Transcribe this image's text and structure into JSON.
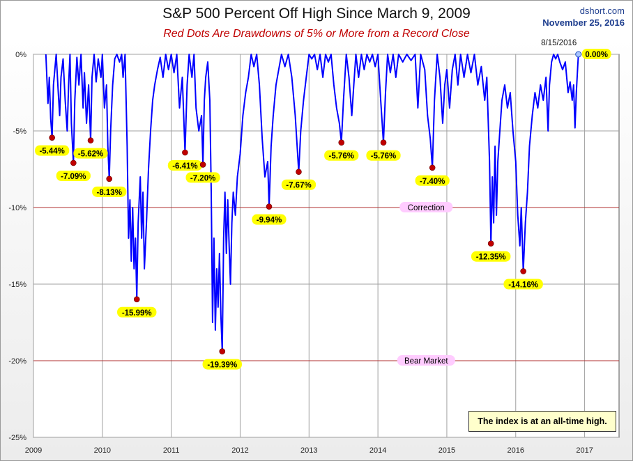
{
  "title": "S&P 500 Percent Off High Since March 9, 2009",
  "subtitle": "Red Dots Are Drawdowns of 5% or More from a Record Close",
  "source": "dshort.com",
  "date": "November 25, 2016",
  "note": "The index is at an all-time high.",
  "colors": {
    "series": "#0000ff",
    "drawdown_dot": "#c00000",
    "label_bg": "#ffff00",
    "threshold_line": "#b03030",
    "threshold_label_bg": "#ffccff",
    "current_dot": "#a8c4ff"
  },
  "chart_data": {
    "type": "line",
    "title": "S&P 500 Percent Off High Since March 9, 2009",
    "subtitle": "Red Dots Are Drawdowns of 5% or More from a Record Close",
    "xlim": [
      2009,
      2017.5
    ],
    "ylim": [
      -25,
      0
    ],
    "x_ticks": [
      "2009",
      "2010",
      "2011",
      "2012",
      "2013",
      "2014",
      "2015",
      "2016",
      "2017"
    ],
    "y_ticks": [
      "0%",
      "-5%",
      "-10%",
      "-15%",
      "-20%",
      "-25%"
    ],
    "grid": true,
    "series": [
      {
        "points": [
          [
            2009.18,
            0
          ],
          [
            2009.21,
            -3.2
          ],
          [
            2009.23,
            -1.5
          ],
          [
            2009.25,
            -4.2
          ],
          [
            2009.27,
            -5.44
          ],
          [
            2009.29,
            -2.0
          ],
          [
            2009.33,
            0
          ],
          [
            2009.36,
            -2.5
          ],
          [
            2009.38,
            -4.0
          ],
          [
            2009.4,
            -1.5
          ],
          [
            2009.43,
            -0.3
          ],
          [
            2009.46,
            -3.0
          ],
          [
            2009.49,
            -5.0
          ],
          [
            2009.51,
            -2.0
          ],
          [
            2009.53,
            0
          ],
          [
            2009.55,
            -4.5
          ],
          [
            2009.58,
            -7.09
          ],
          [
            2009.6,
            -3.0
          ],
          [
            2009.63,
            -0.2
          ],
          [
            2009.66,
            -2.0
          ],
          [
            2009.69,
            0
          ],
          [
            2009.72,
            -3.5
          ],
          [
            2009.74,
            -1.2
          ],
          [
            2009.77,
            -4.5
          ],
          [
            2009.8,
            -2.0
          ],
          [
            2009.83,
            -5.62
          ],
          [
            2009.85,
            -1.5
          ],
          [
            2009.88,
            0
          ],
          [
            2009.91,
            -1.8
          ],
          [
            2009.94,
            -0.3
          ],
          [
            2009.98,
            -1.5
          ],
          [
            2010.0,
            0
          ],
          [
            2010.03,
            -3.5
          ],
          [
            2010.06,
            -2.0
          ],
          [
            2010.08,
            -6.0
          ],
          [
            2010.1,
            -8.13
          ],
          [
            2010.12,
            -5.0
          ],
          [
            2010.15,
            -2.0
          ],
          [
            2010.18,
            -0.3
          ],
          [
            2010.21,
            0
          ],
          [
            2010.25,
            -0.5
          ],
          [
            2010.28,
            0
          ],
          [
            2010.3,
            -1.5
          ],
          [
            2010.33,
            0
          ],
          [
            2010.36,
            -6.0
          ],
          [
            2010.38,
            -12.0
          ],
          [
            2010.4,
            -9.5
          ],
          [
            2010.42,
            -13.5
          ],
          [
            2010.44,
            -10.0
          ],
          [
            2010.46,
            -14.0
          ],
          [
            2010.48,
            -12.0
          ],
          [
            2010.5,
            -15.99
          ],
          [
            2010.52,
            -11.0
          ],
          [
            2010.55,
            -8.0
          ],
          [
            2010.57,
            -12.0
          ],
          [
            2010.59,
            -9.0
          ],
          [
            2010.61,
            -14.0
          ],
          [
            2010.64,
            -11.0
          ],
          [
            2010.67,
            -7.5
          ],
          [
            2010.7,
            -5.0
          ],
          [
            2010.73,
            -3.0
          ],
          [
            2010.76,
            -2.0
          ],
          [
            2010.8,
            -1.0
          ],
          [
            2010.84,
            -0.2
          ],
          [
            2010.88,
            -1.5
          ],
          [
            2010.92,
            0
          ],
          [
            2010.96,
            -1.0
          ],
          [
            2011.0,
            0
          ],
          [
            2011.04,
            -1.2
          ],
          [
            2011.08,
            0
          ],
          [
            2011.12,
            -3.5
          ],
          [
            2011.16,
            -1.5
          ],
          [
            2011.2,
            -6.41
          ],
          [
            2011.23,
            -2.0
          ],
          [
            2011.26,
            0
          ],
          [
            2011.3,
            -1.5
          ],
          [
            2011.33,
            0
          ],
          [
            2011.36,
            -3.5
          ],
          [
            2011.4,
            -5.0
          ],
          [
            2011.44,
            -4.0
          ],
          [
            2011.46,
            -7.2
          ],
          [
            2011.48,
            -3.0
          ],
          [
            2011.5,
            -1.5
          ],
          [
            2011.53,
            -0.5
          ],
          [
            2011.56,
            -3.0
          ],
          [
            2011.58,
            -9.0
          ],
          [
            2011.6,
            -17.5
          ],
          [
            2011.62,
            -12.0
          ],
          [
            2011.64,
            -18.0
          ],
          [
            2011.66,
            -14.0
          ],
          [
            2011.68,
            -16.5
          ],
          [
            2011.7,
            -13.0
          ],
          [
            2011.72,
            -17.0
          ],
          [
            2011.74,
            -19.39
          ],
          [
            2011.76,
            -12.0
          ],
          [
            2011.78,
            -9.0
          ],
          [
            2011.8,
            -13.0
          ],
          [
            2011.82,
            -9.5
          ],
          [
            2011.84,
            -12.5
          ],
          [
            2011.86,
            -15.0
          ],
          [
            2011.88,
            -11.0
          ],
          [
            2011.9,
            -9.0
          ],
          [
            2011.93,
            -10.5
          ],
          [
            2011.96,
            -8.0
          ],
          [
            2012.0,
            -6.5
          ],
          [
            2012.04,
            -4.0
          ],
          [
            2012.08,
            -2.5
          ],
          [
            2012.12,
            -1.5
          ],
          [
            2012.16,
            0
          ],
          [
            2012.2,
            -0.8
          ],
          [
            2012.24,
            0
          ],
          [
            2012.28,
            -2.0
          ],
          [
            2012.32,
            -5.5
          ],
          [
            2012.36,
            -8.0
          ],
          [
            2012.4,
            -7.0
          ],
          [
            2012.42,
            -9.94
          ],
          [
            2012.45,
            -6.0
          ],
          [
            2012.48,
            -4.0
          ],
          [
            2012.52,
            -2.0
          ],
          [
            2012.56,
            -1.0
          ],
          [
            2012.6,
            0
          ],
          [
            2012.65,
            -0.8
          ],
          [
            2012.7,
            0
          ],
          [
            2012.75,
            -1.5
          ],
          [
            2012.8,
            -4.0
          ],
          [
            2012.85,
            -7.67
          ],
          [
            2012.88,
            -5.0
          ],
          [
            2012.92,
            -3.0
          ],
          [
            2012.96,
            -1.5
          ],
          [
            2013.0,
            0
          ],
          [
            2013.04,
            -0.3
          ],
          [
            2013.08,
            0
          ],
          [
            2013.12,
            -1.0
          ],
          [
            2013.16,
            0
          ],
          [
            2013.2,
            -1.5
          ],
          [
            2013.24,
            0
          ],
          [
            2013.28,
            -0.5
          ],
          [
            2013.32,
            0
          ],
          [
            2013.36,
            -2.0
          ],
          [
            2013.4,
            -3.5
          ],
          [
            2013.44,
            -4.5
          ],
          [
            2013.47,
            -5.76
          ],
          [
            2013.5,
            -3.0
          ],
          [
            2013.54,
            0
          ],
          [
            2013.58,
            -1.5
          ],
          [
            2013.62,
            -4.0
          ],
          [
            2013.65,
            -2.0
          ],
          [
            2013.68,
            0
          ],
          [
            2013.72,
            -1.5
          ],
          [
            2013.76,
            0
          ],
          [
            2013.8,
            -1.0
          ],
          [
            2013.84,
            0
          ],
          [
            2013.88,
            -0.5
          ],
          [
            2013.92,
            0
          ],
          [
            2013.96,
            -0.8
          ],
          [
            2014.0,
            0
          ],
          [
            2014.04,
            -3.0
          ],
          [
            2014.08,
            -5.76
          ],
          [
            2014.11,
            -2.5
          ],
          [
            2014.14,
            0
          ],
          [
            2014.18,
            -1.2
          ],
          [
            2014.22,
            0
          ],
          [
            2014.26,
            -1.5
          ],
          [
            2014.3,
            0
          ],
          [
            2014.36,
            -0.5
          ],
          [
            2014.42,
            0
          ],
          [
            2014.48,
            -0.4
          ],
          [
            2014.54,
            0
          ],
          [
            2014.58,
            -3.5
          ],
          [
            2014.62,
            0
          ],
          [
            2014.68,
            -1.0
          ],
          [
            2014.72,
            -4.0
          ],
          [
            2014.76,
            -5.5
          ],
          [
            2014.79,
            -7.4
          ],
          [
            2014.82,
            -3.0
          ],
          [
            2014.86,
            0
          ],
          [
            2014.9,
            -1.5
          ],
          [
            2014.94,
            -4.5
          ],
          [
            2014.97,
            -2.0
          ],
          [
            2015.0,
            -1.0
          ],
          [
            2015.04,
            -3.5
          ],
          [
            2015.08,
            -1.0
          ],
          [
            2015.12,
            0
          ],
          [
            2015.16,
            -2.0
          ],
          [
            2015.2,
            0
          ],
          [
            2015.25,
            -1.5
          ],
          [
            2015.3,
            0
          ],
          [
            2015.35,
            -1.2
          ],
          [
            2015.4,
            0
          ],
          [
            2015.45,
            -2.0
          ],
          [
            2015.5,
            -0.8
          ],
          [
            2015.55,
            -3.0
          ],
          [
            2015.58,
            -1.5
          ],
          [
            2015.62,
            -7.0
          ],
          [
            2015.64,
            -12.35
          ],
          [
            2015.66,
            -8.0
          ],
          [
            2015.68,
            -11.0
          ],
          [
            2015.7,
            -6.0
          ],
          [
            2015.72,
            -10.5
          ],
          [
            2015.74,
            -7.0
          ],
          [
            2015.77,
            -5.0
          ],
          [
            2015.8,
            -3.0
          ],
          [
            2015.84,
            -2.0
          ],
          [
            2015.88,
            -3.5
          ],
          [
            2015.92,
            -2.5
          ],
          [
            2015.96,
            -5.0
          ],
          [
            2016.0,
            -7.0
          ],
          [
            2016.03,
            -10.5
          ],
          [
            2016.06,
            -12.5
          ],
          [
            2016.08,
            -10.0
          ],
          [
            2016.11,
            -14.16
          ],
          [
            2016.14,
            -11.0
          ],
          [
            2016.17,
            -9.0
          ],
          [
            2016.2,
            -6.0
          ],
          [
            2016.24,
            -4.0
          ],
          [
            2016.28,
            -2.5
          ],
          [
            2016.32,
            -3.5
          ],
          [
            2016.36,
            -2.0
          ],
          [
            2016.4,
            -3.0
          ],
          [
            2016.44,
            -1.5
          ],
          [
            2016.47,
            -5.0
          ],
          [
            2016.49,
            -2.0
          ],
          [
            2016.52,
            -0.5
          ],
          [
            2016.55,
            0
          ],
          [
            2016.58,
            -0.3
          ],
          [
            2016.61,
            0
          ],
          [
            2016.64,
            -0.5
          ],
          [
            2016.68,
            -1.0
          ],
          [
            2016.72,
            -0.5
          ],
          [
            2016.76,
            -2.5
          ],
          [
            2016.79,
            -1.8
          ],
          [
            2016.82,
            -3.0
          ],
          [
            2016.84,
            -2.0
          ],
          [
            2016.86,
            -4.8
          ],
          [
            2016.88,
            -2.5
          ],
          [
            2016.9,
            -0.8
          ],
          [
            2016.91,
            0
          ]
        ]
      }
    ],
    "drawdowns": [
      {
        "x": 2009.27,
        "y": -5.44,
        "label": "-5.44%"
      },
      {
        "x": 2009.58,
        "y": -7.09,
        "label": "-7.09%"
      },
      {
        "x": 2009.83,
        "y": -5.62,
        "label": "-5.62%"
      },
      {
        "x": 2010.1,
        "y": -8.13,
        "label": "-8.13%"
      },
      {
        "x": 2010.5,
        "y": -15.99,
        "label": "-15.99%"
      },
      {
        "x": 2011.2,
        "y": -6.41,
        "label": "-6.41%"
      },
      {
        "x": 2011.46,
        "y": -7.2,
        "label": "-7.20%"
      },
      {
        "x": 2011.74,
        "y": -19.39,
        "label": "-19.39%"
      },
      {
        "x": 2012.42,
        "y": -9.94,
        "label": "-9.94%"
      },
      {
        "x": 2012.85,
        "y": -7.67,
        "label": "-7.67%"
      },
      {
        "x": 2013.47,
        "y": -5.76,
        "label": "-5.76%"
      },
      {
        "x": 2014.08,
        "y": -5.76,
        "label": "-5.76%"
      },
      {
        "x": 2014.79,
        "y": -7.4,
        "label": "-7.40%"
      },
      {
        "x": 2015.64,
        "y": -12.35,
        "label": "-12.35%"
      },
      {
        "x": 2016.11,
        "y": -14.16,
        "label": "-14.16%"
      }
    ],
    "current": {
      "x": 2016.91,
      "y": 0,
      "label": "0.00%",
      "date_label": "8/15/2016"
    },
    "thresholds": [
      {
        "y": -10,
        "label": "Correction"
      },
      {
        "y": -20,
        "label": "Bear Market"
      }
    ]
  }
}
